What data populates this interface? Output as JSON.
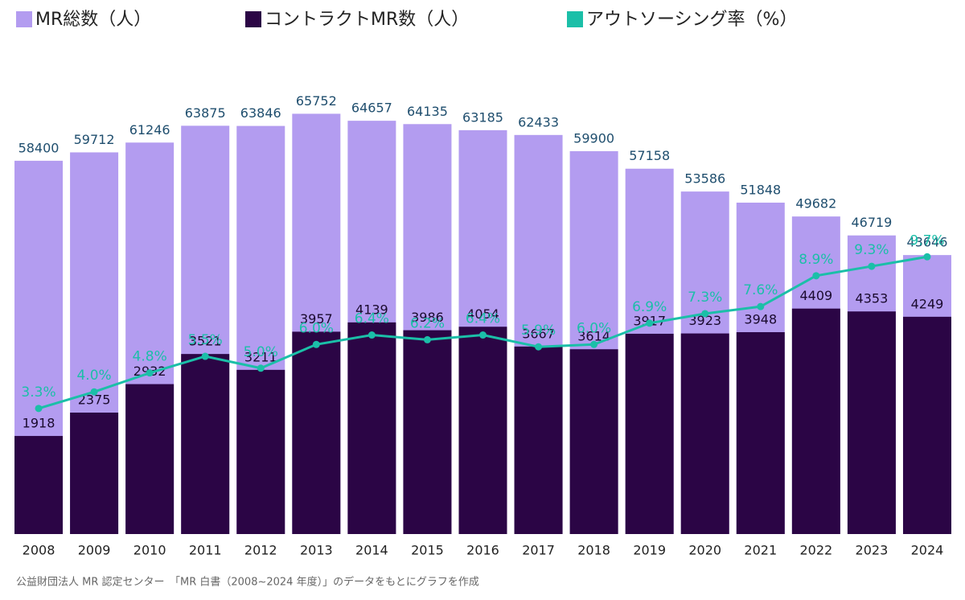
{
  "chart_data": {
    "type": "bar_line",
    "categories": [
      "2008",
      "2009",
      "2010",
      "2011",
      "2012",
      "2013",
      "2014",
      "2015",
      "2016",
      "2017",
      "2018",
      "2019",
      "2020",
      "2021",
      "2022",
      "2023",
      "2024"
    ],
    "series": [
      {
        "name": "MR総数（人）",
        "color": "#b39cf0",
        "type": "bar",
        "axis": "y",
        "values": [
          58400,
          59712,
          61246,
          63875,
          63846,
          65752,
          64657,
          64135,
          63185,
          62433,
          59900,
          57158,
          53586,
          51848,
          49682,
          46719,
          43646
        ]
      },
      {
        "name": "コントラクトMR数（人）",
        "color": "#2b0545",
        "type": "bar",
        "axis": "y2",
        "values": [
          1918,
          2375,
          2932,
          3521,
          3211,
          3957,
          4139,
          3986,
          4054,
          3667,
          3614,
          3917,
          3923,
          3948,
          4409,
          4353,
          4249
        ]
      },
      {
        "name": "アウトソーシング率（%）",
        "color": "#1bbfa8",
        "type": "line",
        "axis": "y3",
        "values": [
          3.3,
          4.0,
          4.8,
          5.5,
          5.0,
          6.0,
          6.4,
          6.2,
          6.4,
          5.9,
          6.0,
          6.9,
          7.3,
          7.6,
          8.9,
          9.3,
          9.7
        ],
        "value_labels": [
          "3.3%",
          "4.0%",
          "4.8%",
          "5.5%",
          "5.0%",
          "6.0%",
          "6.4%",
          "6.2%",
          "6.4%",
          "5.9%",
          "6.0%",
          "6.9%",
          "7.3%",
          "7.6%",
          "8.9%",
          "9.3%",
          "9.7%"
        ]
      }
    ],
    "ylim": [
      0,
      76000
    ],
    "y2lim": [
      0,
      9500
    ],
    "y3lim": [
      -2,
      18.5
    ],
    "source": "公益財団法人 MR 認定センター　「MR 白書（2008~2024 年度）」のデータをもとにグラフを作成"
  }
}
